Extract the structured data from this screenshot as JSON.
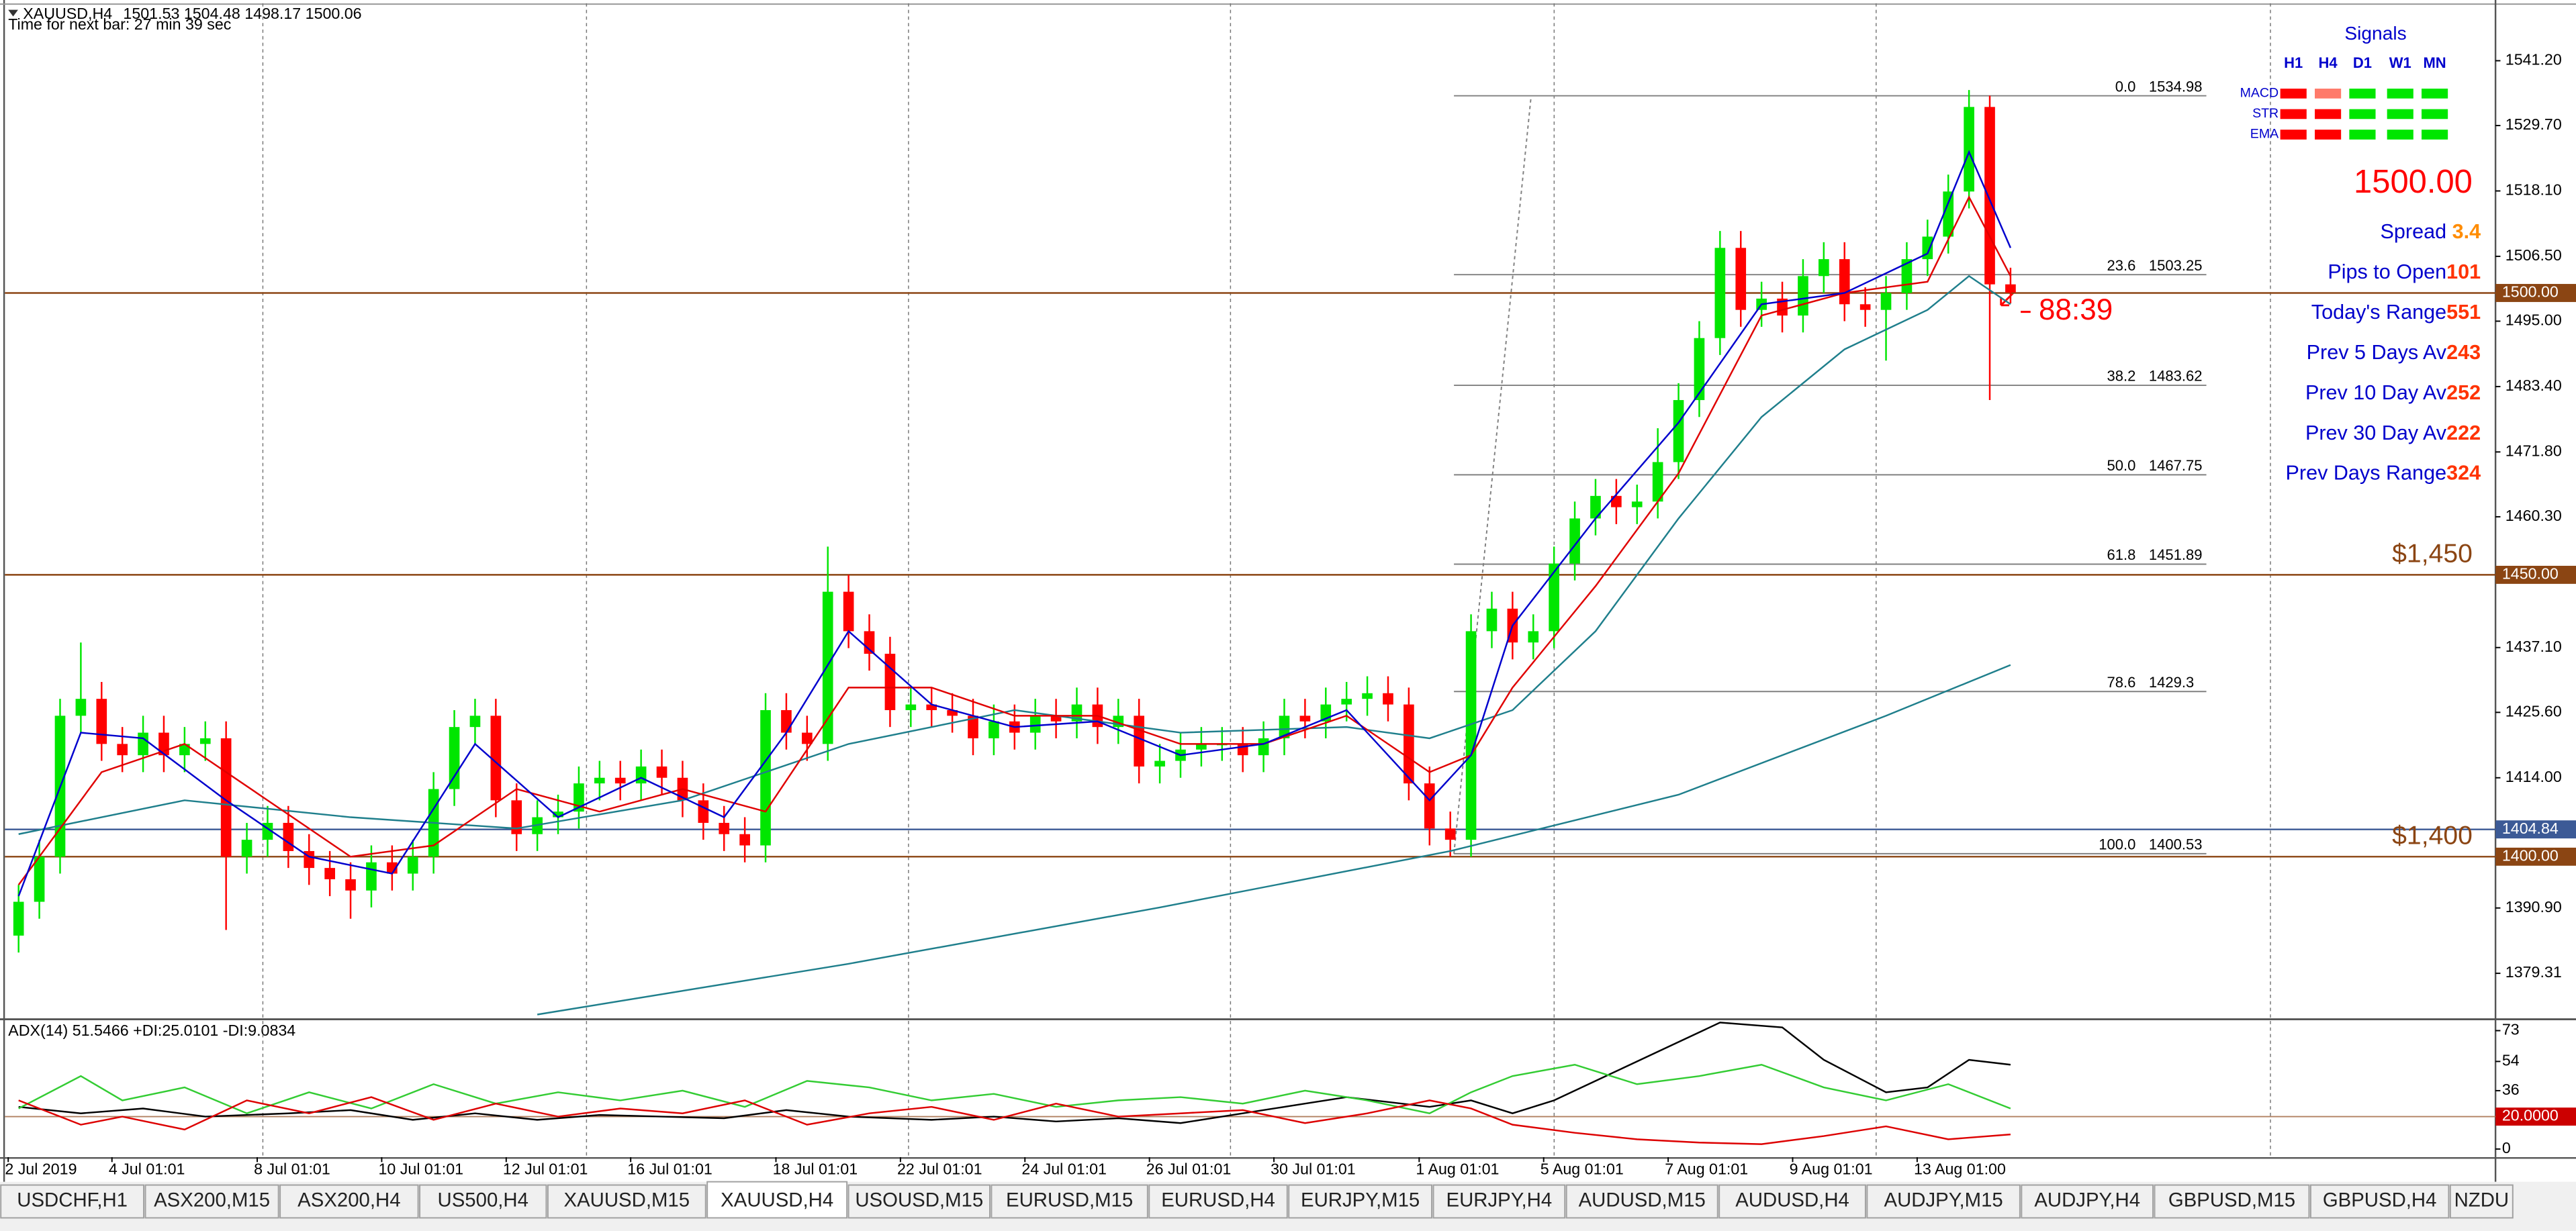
{
  "chart_data": [
    {
      "type": "candlestick",
      "symbol": "XAUUSD,H4",
      "timer_text": "Time for next bar: 27 min 39 sec",
      "up_color": "#00e600",
      "down_color": "#ff0000",
      "grid": false,
      "categories": [
        "2 Jul 2019",
        null,
        null,
        null,
        null,
        "4 Jul 01:01",
        null,
        null,
        null,
        null,
        null,
        null,
        "8 Jul 01:01",
        null,
        null,
        null,
        null,
        null,
        "10 Jul 01:01",
        null,
        null,
        null,
        null,
        null,
        "12 Jul 01:01",
        null,
        null,
        null,
        null,
        null,
        "16 Jul 01:01",
        null,
        null,
        null,
        null,
        null,
        null,
        "18 Jul 01:01",
        null,
        null,
        null,
        null,
        null,
        "22 Jul 01:01",
        null,
        null,
        null,
        null,
        null,
        "24 Jul 01:01",
        null,
        null,
        null,
        null,
        null,
        "26 Jul 01:01",
        null,
        null,
        null,
        null,
        null,
        "30 Jul 01:01",
        null,
        null,
        null,
        null,
        null,
        null,
        "1 Aug 01:01",
        null,
        null,
        null,
        null,
        null,
        "5 Aug 01:01",
        null,
        null,
        null,
        null,
        null,
        "7 Aug 01:01",
        null,
        null,
        null,
        null,
        null,
        "9 Aug 01:01",
        null,
        null,
        null,
        null,
        null,
        "13 Aug 01:00",
        null,
        null,
        null,
        null
      ],
      "open": [
        1386,
        1392,
        1400,
        1425,
        1428,
        1420,
        1418,
        1422,
        1418,
        1420,
        1421,
        1400,
        1403,
        1406,
        1401,
        1398,
        1396,
        1394,
        1399,
        1397,
        1400,
        1412,
        1423,
        1425,
        1410,
        1404,
        1407,
        1408,
        1413,
        1414,
        1413,
        1416,
        1414,
        1410,
        1406,
        1404,
        1402,
        1426,
        1422,
        1420,
        1447,
        1440,
        1436,
        1426,
        1427,
        1426,
        1425,
        1421,
        1424,
        1422,
        1425,
        1424,
        1427,
        1423,
        1425,
        1416,
        1417,
        1419,
        1420,
        1420,
        1418,
        1421,
        1425,
        1424,
        1427,
        1428,
        1429,
        1427,
        1413,
        1405,
        1403,
        1440,
        1444,
        1438,
        1440,
        1452,
        1460,
        1464,
        1462,
        1463,
        1470,
        1481,
        1492,
        1508,
        1497,
        1499,
        1496,
        1503,
        1506,
        1498,
        1497,
        1500,
        1506,
        1510,
        1518,
        1533,
        1501.53
      ],
      "high": [
        1395,
        1403,
        1428,
        1438,
        1431,
        1423,
        1425,
        1425,
        1423,
        1424,
        1424,
        1406,
        1409,
        1409,
        1404,
        1401,
        1399,
        1402,
        1402,
        1403,
        1415,
        1426,
        1428,
        1428,
        1413,
        1410,
        1411,
        1416,
        1417,
        1417,
        1419,
        1419,
        1417,
        1413,
        1409,
        1407,
        1429,
        1429,
        1425,
        1455,
        1450,
        1443,
        1439,
        1430,
        1430,
        1429,
        1428,
        1427,
        1427,
        1428,
        1428,
        1430,
        1430,
        1428,
        1428,
        1420,
        1422,
        1423,
        1423,
        1423,
        1424,
        1428,
        1428,
        1430,
        1431,
        1432,
        1432,
        1430,
        1416,
        1408,
        1443,
        1447,
        1447,
        1443,
        1455,
        1463,
        1467,
        1467,
        1466,
        1476,
        1484,
        1495,
        1511,
        1511,
        1502,
        1502,
        1506,
        1509,
        1509,
        1501,
        1503,
        1509,
        1513,
        1521,
        1536,
        1535,
        1504.48
      ],
      "low": [
        1383,
        1389,
        1397,
        1422,
        1417,
        1415,
        1415,
        1415,
        1415,
        1417,
        1387,
        1397,
        1400,
        1398,
        1395,
        1393,
        1389,
        1391,
        1394,
        1394,
        1397,
        1409,
        1420,
        1407,
        1401,
        1401,
        1404,
        1405,
        1410,
        1410,
        1410,
        1411,
        1407,
        1403,
        1401,
        1399,
        1399,
        1419,
        1417,
        1417,
        1437,
        1433,
        1423,
        1423,
        1423,
        1422,
        1418,
        1418,
        1419,
        1419,
        1421,
        1421,
        1420,
        1420,
        1413,
        1413,
        1414,
        1416,
        1417,
        1415,
        1415,
        1418,
        1421,
        1421,
        1424,
        1425,
        1424,
        1410,
        1402,
        1400,
        1400,
        1437,
        1435,
        1435,
        1437,
        1449,
        1457,
        1459,
        1459,
        1460,
        1467,
        1478,
        1489,
        1494,
        1494,
        1493,
        1493,
        1500,
        1495,
        1494,
        1488,
        1497,
        1503,
        1507,
        1515,
        1481,
        1498.17
      ],
      "close": [
        1392,
        1400,
        1425,
        1428,
        1420,
        1418,
        1422,
        1418,
        1420,
        1421,
        1400,
        1403,
        1406,
        1401,
        1398,
        1396,
        1394,
        1399,
        1397,
        1400,
        1412,
        1423,
        1425,
        1410,
        1404,
        1407,
        1408,
        1413,
        1414,
        1413,
        1416,
        1414,
        1410,
        1406,
        1404,
        1402,
        1426,
        1422,
        1420,
        1447,
        1440,
        1436,
        1426,
        1427,
        1426,
        1425,
        1421,
        1424,
        1422,
        1425,
        1424,
        1427,
        1423,
        1425,
        1416,
        1417,
        1419,
        1420,
        1420,
        1418,
        1421,
        1425,
        1424,
        1427,
        1428,
        1429,
        1427,
        1413,
        1405,
        1403,
        1440,
        1444,
        1438,
        1440,
        1452,
        1460,
        1464,
        1462,
        1463,
        1470,
        1481,
        1492,
        1508,
        1497,
        1499,
        1496,
        1503,
        1506,
        1498,
        1497,
        1500,
        1506,
        1510,
        1518,
        1533,
        1501.53,
        1500.06
      ],
      "lines": [
        {
          "color": "#1f7f8c",
          "x": [
            25,
            40,
            55,
            69,
            80,
            90,
            96
          ],
          "values": [
            1372,
            1381,
            1391,
            1401,
            1411,
            1425,
            1434
          ]
        },
        {
          "color": "#1f7f8c",
          "x": [
            0,
            8,
            16,
            24,
            32,
            40,
            48,
            56,
            64,
            68,
            72,
            76,
            80,
            84,
            88,
            92,
            94,
            96
          ],
          "values": [
            1404,
            1410,
            1407,
            1405,
            1410,
            1420,
            1426,
            1422,
            1423,
            1421,
            1426,
            1440,
            1460,
            1478,
            1490,
            1497,
            1503,
            1498
          ]
        },
        {
          "color": "#e00000",
          "x": [
            0,
            4,
            8,
            12,
            16,
            20,
            24,
            28,
            32,
            36,
            40,
            44,
            48,
            52,
            56,
            60,
            64,
            68,
            70,
            72,
            76,
            80,
            84,
            88,
            92,
            94,
            96
          ],
          "values": [
            1395,
            1415,
            1420,
            1410,
            1400,
            1402,
            1412,
            1408,
            1412,
            1408,
            1430,
            1430,
            1425,
            1425,
            1420,
            1420,
            1425,
            1415,
            1418,
            1430,
            1448,
            1468,
            1496,
            1500,
            1502,
            1517,
            1503
          ]
        },
        {
          "color": "#0000cd",
          "x": [
            0,
            3,
            6,
            10,
            14,
            18,
            22,
            26,
            30,
            34,
            37,
            40,
            44,
            48,
            52,
            56,
            60,
            64,
            68,
            70,
            72,
            76,
            80,
            84,
            88,
            92,
            94,
            96
          ],
          "values": [
            1393,
            1422,
            1421,
            1410,
            1400,
            1397,
            1420,
            1407,
            1414,
            1407,
            1422,
            1440,
            1427,
            1423,
            1424,
            1418,
            1420,
            1426,
            1410,
            1418,
            1441,
            1460,
            1477,
            1498,
            1500,
            1507,
            1525,
            1508
          ]
        }
      ],
      "levels": [
        {
          "value": 1500,
          "label": "1500.00",
          "color": "#8b4513"
        },
        {
          "value": 1450,
          "label": "1450.00",
          "color": "#8b4513",
          "note": "$1,450"
        },
        {
          "value": 1404.84,
          "label": "1404.84",
          "color": "#3c5a96"
        },
        {
          "value": 1400,
          "label": "1400.00",
          "color": "#8b4513",
          "note": "$1,400"
        }
      ],
      "fibonacci": [
        {
          "level": "0.0",
          "price": 1534.98
        },
        {
          "level": "23.6",
          "price": 1503.25
        },
        {
          "level": "38.2",
          "price": 1483.62
        },
        {
          "level": "50.0",
          "price": 1467.75
        },
        {
          "level": "61.8",
          "price": 1451.89
        },
        {
          "level": "78.6",
          "price": 1429.3
        },
        {
          "level": "100.0",
          "price": 1400.53
        }
      ],
      "ylim": [
        1371.45,
        1551.39
      ],
      "yticks": [
        {
          "value": 1541.2,
          "label": "1541.20"
        },
        {
          "value": 1529.7,
          "label": "1529.70"
        },
        {
          "value": 1518.1,
          "label": "1518.10"
        },
        {
          "value": 1506.5,
          "label": "1506.50"
        },
        {
          "value": 1495,
          "label": "1495.00"
        },
        {
          "value": 1483.4,
          "label": "1483.40"
        },
        {
          "value": 1471.8,
          "label": "1471.80"
        },
        {
          "value": 1460.3,
          "label": "1460.30"
        },
        {
          "value": 1437.1,
          "label": "1437.10"
        },
        {
          "value": 1425.6,
          "label": "1425.60"
        },
        {
          "value": 1414,
          "label": "1414.00"
        },
        {
          "value": 1390.9,
          "label": "1390.90"
        },
        1379.31
      ]
    },
    {
      "type": "line",
      "title": "ADX(14) 51.5466 +DI:25.0101 -DI:9.0834",
      "series": [
        {
          "color": "#000000",
          "x": [
            0,
            3,
            6,
            9,
            13,
            16,
            19,
            22,
            25,
            28,
            31,
            34,
            37,
            40,
            44,
            47,
            50,
            53,
            56,
            59,
            62,
            64,
            66,
            68,
            70,
            72,
            74,
            77,
            79,
            82,
            85,
            87,
            90,
            92,
            94,
            96
          ],
          "values": [
            26,
            22,
            25,
            20,
            22,
            24,
            18,
            22,
            18,
            21,
            20,
            19,
            24,
            20,
            18,
            20,
            17,
            19,
            16,
            22,
            28,
            32,
            29,
            26,
            30,
            22,
            30,
            48,
            60,
            78,
            75,
            55,
            35,
            38,
            55,
            52
          ]
        },
        {
          "color": "#33cc33",
          "x": [
            0,
            3,
            5,
            8,
            11,
            14,
            17,
            20,
            23,
            26,
            29,
            32,
            35,
            38,
            41,
            44,
            47,
            50,
            53,
            56,
            59,
            62,
            65,
            68,
            70,
            72,
            75,
            78,
            81,
            84,
            87,
            90,
            93,
            96
          ],
          "values": [
            25,
            45,
            30,
            38,
            22,
            35,
            25,
            40,
            28,
            35,
            30,
            36,
            26,
            42,
            38,
            30,
            34,
            26,
            30,
            32,
            28,
            36,
            30,
            22,
            35,
            45,
            52,
            40,
            45,
            52,
            38,
            30,
            40,
            25
          ]
        },
        {
          "color": "#dd0000",
          "x": [
            0,
            3,
            5,
            8,
            11,
            14,
            17,
            20,
            23,
            26,
            29,
            32,
            35,
            38,
            41,
            44,
            47,
            50,
            53,
            56,
            59,
            62,
            65,
            68,
            70,
            72,
            75,
            78,
            81,
            84,
            87,
            90,
            93,
            96
          ],
          "values": [
            30,
            15,
            20,
            12,
            30,
            22,
            32,
            18,
            28,
            20,
            25,
            22,
            30,
            15,
            22,
            26,
            18,
            28,
            20,
            22,
            24,
            16,
            22,
            30,
            25,
            15,
            10,
            6,
            4,
            3,
            8,
            14,
            6,
            9
          ]
        }
      ],
      "level": {
        "value": 20,
        "label": "20.0000",
        "color": "#cc0000"
      },
      "ylim": [
        -5,
        79
      ],
      "yticks": [
        0,
        36,
        54,
        73
      ]
    }
  ],
  "signals": {
    "title": "Signals",
    "columns": [
      "H1",
      "H4",
      "D1",
      "W1",
      "MN"
    ],
    "rows": [
      {
        "name": "MACD",
        "colors": [
          "#ff0000",
          "#ff7a6a",
          "#00e600",
          "#00e600",
          "#00e600"
        ]
      },
      {
        "name": "STR",
        "colors": [
          "#ff0000",
          "#ff0000",
          "#00e600",
          "#00e600",
          "#00e600"
        ]
      },
      {
        "name": "EMA",
        "colors": [
          "#ff0000",
          "#ff0000",
          "#00e600",
          "#00e600",
          "#00e600"
        ]
      }
    ]
  },
  "current_price": "1500.00",
  "countdown": "88:39",
  "info": [
    {
      "label": "Spread ",
      "value": 3.4,
      "color": "#ff8c00"
    },
    {
      "label": "Pips to Open",
      "value": 101,
      "color": "#ff3300"
    },
    {
      "label": "Today's Range",
      "value": 551,
      "color": "#ff3300"
    },
    {
      "label": "Prev 5 Days Av",
      "value": 243,
      "color": "#ff3300"
    },
    {
      "label": "Prev 10 Day Av",
      "value": 252,
      "color": "#ff3300"
    },
    {
      "label": "Prev 30 Day Av",
      "value": 222,
      "color": "#ff3300"
    },
    {
      "label": "Prev Days Range",
      "value": 324,
      "color": "#ff3300"
    }
  ],
  "tabs": {
    "items": [
      "USDCHF,H1",
      "ASX200,M15",
      "ASX200,H4",
      "US500,H4",
      "XAUUSD,M15",
      "XAUUSD,H4",
      "USOUSD,M15",
      "EURUSD,M15",
      "EURUSD,H4",
      "EURJPY,M15",
      "EURJPY,H4",
      "AUDUSD,M15",
      "AUDUSD,H4",
      "AUDJPY,M15",
      "AUDJPY,H4",
      "GBPUSD,M15",
      "GBPUSD,H4",
      "NZDU"
    ],
    "active": 5
  }
}
